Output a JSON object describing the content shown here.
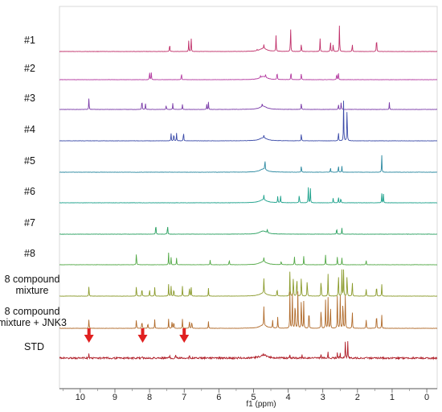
{
  "chart_data": {
    "type": "line",
    "title": "",
    "xlabel": "f1 (ppm)",
    "ylabel": "",
    "xlim": [
      10.6,
      -0.3
    ],
    "x_reversed": true,
    "x_ticks": [
      10,
      9,
      8,
      7,
      6,
      5,
      4,
      3,
      2,
      1,
      0
    ],
    "series": [
      {
        "label_lines": [
          "#1"
        ],
        "color": "#c0306a",
        "peaks": [
          [
            7.42,
            0.55
          ],
          [
            6.87,
            0.6
          ],
          [
            6.8,
            0.88
          ],
          [
            4.9,
            0.1
          ],
          [
            4.7,
            0.25
          ],
          [
            4.35,
            0.9
          ],
          [
            3.93,
            1.6
          ],
          [
            3.62,
            0.55
          ],
          [
            3.08,
            0.75
          ],
          [
            2.78,
            0.7
          ],
          [
            2.7,
            0.5
          ],
          [
            2.52,
            1.6
          ],
          [
            2.15,
            0.5
          ],
          [
            1.45,
            1.0
          ]
        ]
      },
      {
        "label_lines": [
          "#2"
        ],
        "color": "#b43aa0",
        "peaks": [
          [
            8.0,
            0.55
          ],
          [
            7.95,
            0.45
          ],
          [
            7.08,
            0.45
          ],
          [
            4.8,
            0.1
          ],
          [
            4.65,
            0.2
          ],
          [
            4.32,
            0.55
          ],
          [
            3.92,
            0.6
          ],
          [
            3.62,
            0.45
          ],
          [
            2.6,
            0.45
          ],
          [
            2.55,
            0.5
          ]
        ]
      },
      {
        "label_lines": [
          "#3"
        ],
        "color": "#7a3aa8",
        "peaks": [
          [
            9.75,
            0.7
          ],
          [
            8.22,
            0.7
          ],
          [
            8.12,
            0.4
          ],
          [
            7.52,
            0.3
          ],
          [
            7.33,
            0.35
          ],
          [
            7.05,
            0.3
          ],
          [
            6.35,
            0.3
          ],
          [
            6.3,
            0.42
          ],
          [
            4.75,
            0.15
          ],
          [
            3.62,
            0.45
          ],
          [
            2.55,
            0.35
          ],
          [
            2.47,
            0.5
          ],
          [
            1.08,
            0.4
          ]
        ]
      },
      {
        "label_lines": [
          "#4"
        ],
        "color": "#3a4aa8",
        "peaks": [
          [
            7.38,
            0.45
          ],
          [
            7.3,
            0.55
          ],
          [
            7.22,
            0.45
          ],
          [
            7.02,
            0.65
          ],
          [
            4.7,
            0.15
          ],
          [
            3.62,
            0.5
          ],
          [
            2.55,
            0.6
          ],
          [
            2.4,
            2.3
          ],
          [
            2.3,
            2.3
          ]
        ]
      },
      {
        "label_lines": [
          "#5"
        ],
        "color": "#2a88a0",
        "peaks": [
          [
            4.67,
            0.7
          ],
          [
            3.62,
            0.45
          ],
          [
            2.78,
            0.3
          ],
          [
            2.55,
            0.45
          ],
          [
            2.45,
            0.35
          ],
          [
            1.3,
            1.0
          ]
        ]
      },
      {
        "label_lines": [
          "#6"
        ],
        "color": "#1aa08a",
        "peaks": [
          [
            4.7,
            0.3
          ],
          [
            4.3,
            0.4
          ],
          [
            4.22,
            0.45
          ],
          [
            3.68,
            0.6
          ],
          [
            3.42,
            0.95
          ],
          [
            3.36,
            0.95
          ],
          [
            2.7,
            0.35
          ],
          [
            2.55,
            0.4
          ],
          [
            2.48,
            0.35
          ],
          [
            1.3,
            0.55
          ],
          [
            1.25,
            0.5
          ]
        ]
      },
      {
        "label_lines": [
          "#7"
        ],
        "color": "#2aa060",
        "peaks": [
          [
            7.82,
            0.75
          ],
          [
            7.48,
            0.65
          ],
          [
            4.6,
            0.25
          ],
          [
            2.6,
            0.45
          ],
          [
            2.45,
            0.35
          ]
        ]
      },
      {
        "label_lines": [
          "#8"
        ],
        "color": "#52a845",
        "peaks": [
          [
            8.38,
            0.8
          ],
          [
            7.45,
            0.7
          ],
          [
            7.38,
            0.45
          ],
          [
            7.22,
            0.4
          ],
          [
            6.25,
            0.3
          ],
          [
            5.7,
            0.35
          ],
          [
            4.7,
            0.25
          ],
          [
            4.2,
            0.25
          ],
          [
            3.82,
            0.5
          ],
          [
            3.55,
            0.5
          ],
          [
            2.92,
            0.6
          ],
          [
            2.58,
            0.5
          ],
          [
            2.45,
            0.4
          ],
          [
            1.75,
            0.3
          ]
        ]
      },
      {
        "label_lines": [
          "8 compound",
          "mixture"
        ],
        "color": "#8a9a2a",
        "peaks": [
          [
            9.75,
            0.6
          ],
          [
            8.38,
            0.7
          ],
          [
            8.22,
            0.6
          ],
          [
            8.0,
            0.45
          ],
          [
            7.85,
            0.5
          ],
          [
            7.45,
            0.7
          ],
          [
            7.38,
            0.6
          ],
          [
            7.3,
            0.55
          ],
          [
            7.05,
            0.6
          ],
          [
            6.85,
            0.65
          ],
          [
            6.8,
            0.6
          ],
          [
            6.3,
            0.45
          ],
          [
            4.7,
            0.9
          ],
          [
            4.32,
            0.55
          ],
          [
            3.95,
            1.4
          ],
          [
            3.85,
            1.4
          ],
          [
            3.75,
            1.4
          ],
          [
            3.62,
            1.4
          ],
          [
            3.45,
            1.2
          ],
          [
            3.05,
            1.2
          ],
          [
            2.85,
            1.3
          ],
          [
            2.55,
            1.5
          ],
          [
            2.45,
            1.5
          ],
          [
            2.4,
            1.5
          ],
          [
            2.3,
            1.5
          ],
          [
            2.15,
            1.0
          ],
          [
            1.75,
            0.5
          ],
          [
            1.45,
            0.8
          ],
          [
            1.3,
            0.7
          ]
        ]
      },
      {
        "label_lines": [
          "8 compound",
          "mixture + JNK3"
        ],
        "color": "#b06a2a",
        "peaks": [
          [
            9.75,
            0.55
          ],
          [
            8.38,
            0.6
          ],
          [
            8.22,
            0.55
          ],
          [
            8.05,
            0.4
          ],
          [
            7.85,
            0.5
          ],
          [
            7.45,
            0.55
          ],
          [
            7.35,
            0.5
          ],
          [
            7.3,
            0.5
          ],
          [
            7.05,
            0.55
          ],
          [
            6.85,
            0.55
          ],
          [
            6.78,
            0.5
          ],
          [
            6.3,
            0.4
          ],
          [
            4.7,
            1.15
          ],
          [
            4.45,
            0.5
          ],
          [
            4.3,
            0.7
          ],
          [
            3.95,
            2.1
          ],
          [
            3.88,
            2.1
          ],
          [
            3.8,
            2.1
          ],
          [
            3.72,
            2.1
          ],
          [
            3.62,
            2.1
          ],
          [
            3.55,
            1.6
          ],
          [
            3.4,
            1.4
          ],
          [
            3.05,
            1.5
          ],
          [
            2.92,
            1.7
          ],
          [
            2.85,
            1.8
          ],
          [
            2.78,
            1.5
          ],
          [
            2.58,
            2.1
          ],
          [
            2.5,
            2.1
          ],
          [
            2.42,
            2.1
          ],
          [
            2.35,
            2.1
          ],
          [
            2.15,
            1.2
          ],
          [
            1.75,
            0.6
          ],
          [
            1.45,
            1.1
          ],
          [
            1.3,
            0.8
          ]
        ]
      },
      {
        "label_lines": [
          "STD"
        ],
        "color": "#b0202a",
        "peaks": [
          [
            9.75,
            0.25
          ],
          [
            8.22,
            0.2
          ],
          [
            7.42,
            0.2
          ],
          [
            7.25,
            0.25
          ],
          [
            6.85,
            0.2
          ],
          [
            3.95,
            0.2
          ],
          [
            3.6,
            0.25
          ],
          [
            3.05,
            0.3
          ],
          [
            2.85,
            0.35
          ],
          [
            2.58,
            0.4
          ],
          [
            2.5,
            0.35
          ],
          [
            2.35,
            1.1
          ],
          [
            2.28,
            0.9
          ],
          [
            1.45,
            0.15
          ]
        ]
      }
    ],
    "annotations": [
      {
        "type": "arrow",
        "color": "#e02020",
        "x": 9.75
      },
      {
        "type": "arrow",
        "color": "#e02020",
        "x": 8.2
      },
      {
        "type": "arrow",
        "color": "#e02020",
        "x": 7.0
      }
    ]
  }
}
